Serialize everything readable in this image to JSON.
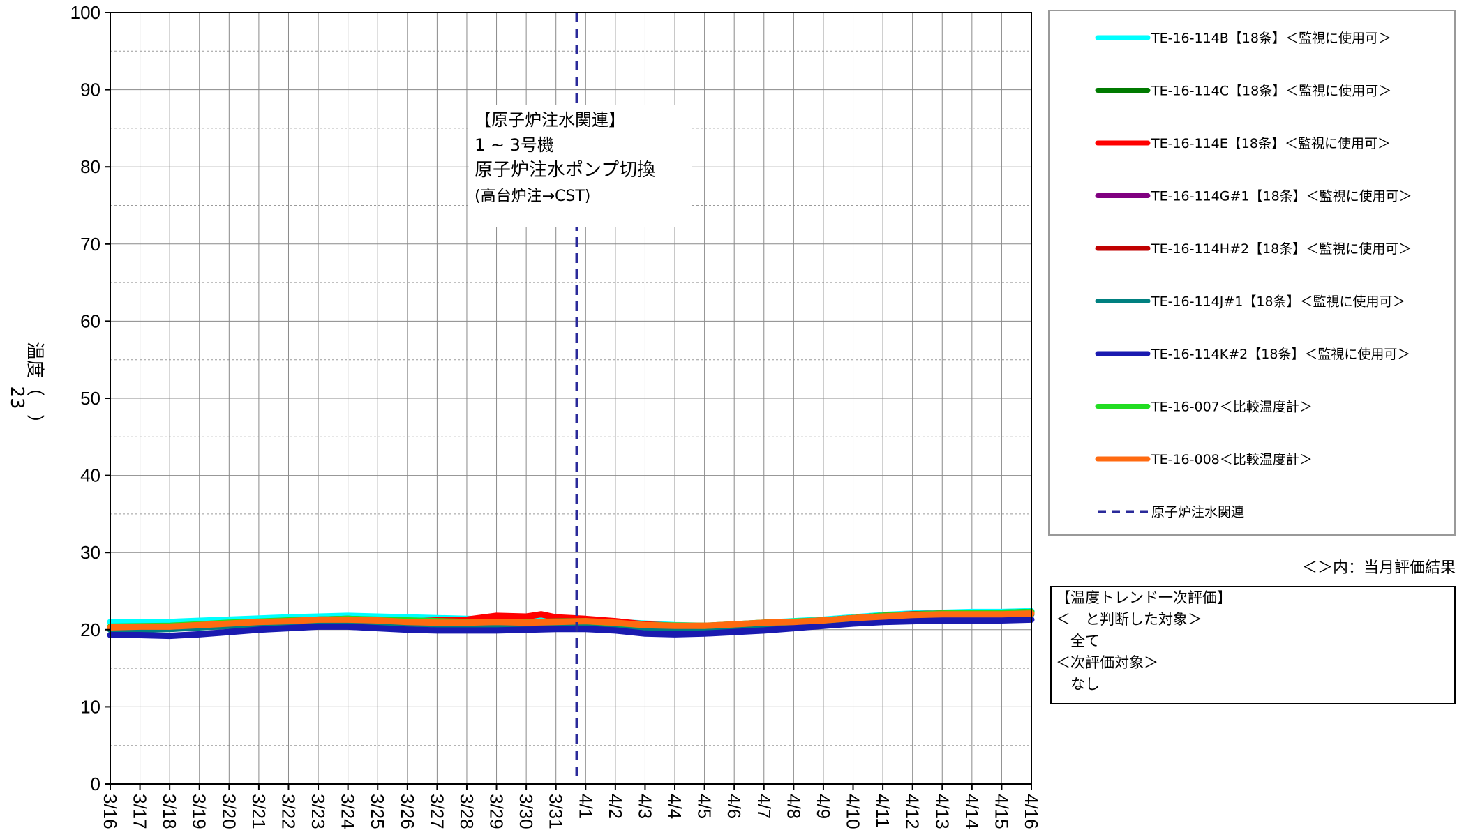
{
  "page": {
    "side_number": "23"
  },
  "chart_data": {
    "type": "line",
    "ylabel": "温度（　）",
    "xlim": [
      0,
      31
    ],
    "ylim": [
      0,
      100
    ],
    "ytick_step": 10,
    "yticks": [
      "0",
      "10",
      "20",
      "30",
      "40",
      "50",
      "60",
      "70",
      "80",
      "90",
      "100"
    ],
    "xticks": [
      "3/16",
      "3/17",
      "3/18",
      "3/19",
      "3/20",
      "3/21",
      "3/22",
      "3/23",
      "3/24",
      "3/25",
      "3/26",
      "3/27",
      "3/28",
      "3/29",
      "3/30",
      "3/31",
      "4/1",
      "4/2",
      "4/3",
      "4/4",
      "4/5",
      "4/6",
      "4/7",
      "4/8",
      "4/9",
      "4/10",
      "4/11",
      "4/12",
      "4/13",
      "4/14",
      "4/15",
      "4/16"
    ],
    "grid": true,
    "event_line": {
      "x": 15.7,
      "label": "原子炉注水関連",
      "color": "#2a2a9a",
      "style": "dashed"
    },
    "annotation": {
      "lines": [
        "【原子炉注水関連】",
        "1 ~ 3号機",
        "原子炉注水ポンプ切換",
        "(高台炉注→CST)"
      ]
    },
    "legend_position": "right",
    "series": [
      {
        "name": "TE-16-114B【18条】＜監視に使用可＞",
        "color": "#00ffff",
        "x": [
          0,
          2,
          4,
          6,
          8,
          10,
          12,
          14,
          15,
          16,
          17,
          18,
          19,
          20,
          21,
          22,
          23,
          24,
          25,
          26,
          27,
          28,
          29,
          30,
          31
        ],
        "y": [
          21.0,
          21.0,
          21.3,
          21.6,
          21.8,
          21.6,
          21.4,
          21.2,
          21.1,
          21.1,
          21.0,
          20.8,
          20.6,
          20.5,
          20.7,
          20.9,
          21.1,
          21.3,
          21.6,
          21.9,
          22.1,
          22.2,
          22.3,
          22.3,
          22.4
        ]
      },
      {
        "name": "TE-16-114C【18条】＜監視に使用可＞",
        "color": "#007a00",
        "x": [
          0,
          2,
          4,
          6,
          8,
          10,
          12,
          14,
          15,
          16,
          17,
          18,
          19,
          20,
          21,
          22,
          23,
          24,
          25,
          26,
          27,
          28,
          29,
          30,
          31
        ],
        "y": [
          20.3,
          20.4,
          20.8,
          21.1,
          21.3,
          21.1,
          20.9,
          20.9,
          21.0,
          21.1,
          20.9,
          20.6,
          20.4,
          20.4,
          20.5,
          20.8,
          21.0,
          21.2,
          21.5,
          21.8,
          22.0,
          22.1,
          22.2,
          22.2,
          22.3
        ]
      },
      {
        "name": "TE-16-114E【18条】＜監視に使用可＞",
        "color": "#ff0000",
        "x": [
          0,
          2,
          4,
          6,
          7,
          8,
          10,
          12,
          13,
          14,
          14.5,
          15,
          16,
          17,
          18,
          19,
          20,
          21,
          22,
          23,
          24,
          25,
          26,
          27,
          28,
          29,
          30,
          31
        ],
        "y": [
          20.2,
          20.3,
          20.7,
          21.0,
          21.3,
          21.4,
          21.1,
          21.3,
          21.8,
          21.7,
          22.0,
          21.6,
          21.4,
          21.1,
          20.7,
          20.5,
          20.5,
          20.6,
          20.9,
          21.0,
          21.2,
          21.5,
          21.8,
          22.0,
          22.1,
          22.1,
          22.1,
          22.2
        ]
      },
      {
        "name": "TE-16-114G#1【18条】＜監視に使用可＞",
        "color": "#800080",
        "x": [
          0,
          2,
          4,
          6,
          8,
          10,
          12,
          14,
          16,
          18,
          20,
          22,
          24,
          26,
          28,
          30,
          31
        ],
        "y": [
          20.2,
          20.3,
          20.7,
          21.0,
          21.2,
          21.0,
          20.8,
          20.9,
          21.0,
          20.5,
          20.3,
          20.7,
          21.1,
          21.7,
          22.0,
          22.1,
          22.2
        ]
      },
      {
        "name": "TE-16-114H#2【18条】＜監視に使用可＞",
        "color": "#c00000",
        "x": [
          0,
          2,
          4,
          6,
          8,
          10,
          12,
          14,
          16,
          18,
          20,
          22,
          24,
          26,
          28,
          30,
          31
        ],
        "y": [
          20.1,
          20.2,
          20.6,
          20.9,
          21.1,
          20.9,
          20.7,
          20.8,
          20.9,
          20.4,
          20.2,
          20.6,
          21.0,
          21.6,
          21.9,
          22.0,
          22.1
        ]
      },
      {
        "name": "TE-16-114J#1【18条】＜監視に使用可＞",
        "color": "#008080",
        "x": [
          0,
          2,
          4,
          6,
          8,
          10,
          12,
          14,
          16,
          18,
          20,
          22,
          24,
          26,
          28,
          30,
          31
        ],
        "y": [
          20.0,
          20.1,
          20.5,
          20.8,
          21.0,
          20.8,
          20.6,
          20.7,
          20.8,
          20.3,
          20.1,
          20.5,
          20.9,
          21.5,
          21.8,
          21.9,
          22.0
        ]
      },
      {
        "name": "TE-16-114K#2【18条】＜監視に使用可＞",
        "color": "#1a1ab0",
        "x": [
          0,
          1,
          2,
          3,
          4,
          5,
          6,
          7,
          8,
          9,
          10,
          11,
          12,
          13,
          14,
          15,
          16,
          17,
          18,
          19,
          20,
          21,
          22,
          23,
          24,
          25,
          26,
          27,
          28,
          29,
          30,
          31
        ],
        "y": [
          19.3,
          19.3,
          19.2,
          19.4,
          19.7,
          20.0,
          20.2,
          20.4,
          20.4,
          20.2,
          20.0,
          19.9,
          19.9,
          19.9,
          20.0,
          20.1,
          20.1,
          19.9,
          19.5,
          19.4,
          19.5,
          19.7,
          19.9,
          20.2,
          20.5,
          20.8,
          21.0,
          21.1,
          21.2,
          21.2,
          21.2,
          21.3
        ]
      },
      {
        "name": "TE-16-007＜比較温度計＞",
        "color": "#22dd22",
        "x": [
          0,
          2,
          4,
          6,
          8,
          10,
          12,
          14,
          16,
          18,
          20,
          22,
          24,
          26,
          28,
          30,
          31
        ],
        "y": [
          20.4,
          20.5,
          20.9,
          21.2,
          21.4,
          21.2,
          21.0,
          21.0,
          21.1,
          20.6,
          20.5,
          20.9,
          21.2,
          21.8,
          22.1,
          22.2,
          22.3
        ]
      },
      {
        "name": "TE-16-008＜比較温度計＞",
        "color": "#ff6a10",
        "x": [
          0,
          1,
          2,
          3,
          4,
          5,
          6,
          7,
          8,
          9,
          10,
          11,
          12,
          13,
          14,
          15,
          16,
          17,
          18,
          19,
          20,
          21,
          22,
          23,
          24,
          25,
          26,
          27,
          28,
          29,
          30,
          31
        ],
        "y": [
          20.3,
          20.4,
          20.4,
          20.6,
          20.8,
          21.0,
          21.1,
          21.3,
          21.3,
          21.2,
          21.0,
          20.9,
          20.9,
          21.0,
          20.9,
          21.0,
          21.1,
          20.9,
          20.6,
          20.5,
          20.5,
          20.7,
          20.9,
          21.0,
          21.2,
          21.5,
          21.7,
          21.9,
          22.0,
          22.0,
          22.0,
          22.1
        ]
      }
    ]
  },
  "legend_note": "＜＞内：当月評価結果",
  "evaluation": {
    "title": "【温度トレンド一次評価】",
    "line1": "＜　と判断した対象＞",
    "line2": "　全て",
    "line3": "＜次評価対象＞",
    "line4": "　なし"
  }
}
